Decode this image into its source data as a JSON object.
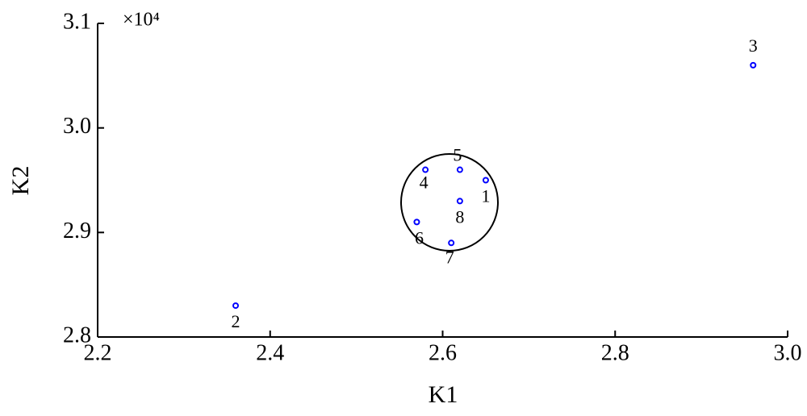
{
  "chart_data": {
    "type": "scatter",
    "xlabel": "K1",
    "ylabel": "K2",
    "annotation": "×10⁴",
    "x": [
      2.65,
      2.36,
      2.96,
      2.58,
      2.62,
      2.57,
      2.61,
      2.62
    ],
    "series": [
      {
        "color": "#0000ff",
        "values": [
          2.95,
          2.83,
          3.06,
          2.96,
          2.96,
          2.91,
          2.89,
          2.93
        ],
        "labels": [
          "1",
          "2",
          "3",
          "4",
          "5",
          "6",
          "7",
          "8"
        ]
      }
    ],
    "xlim": [
      2.2,
      3.0
    ],
    "xticks": [
      2.2,
      2.4,
      2.6,
      2.8,
      {
        "value": 3.0,
        "label": "3.0"
      }
    ],
    "ylim": [
      2.8,
      3.1
    ],
    "yticks": [
      2.8,
      2.9,
      {
        "value": 3.0,
        "label": "3.0"
      },
      3.1
    ]
  }
}
